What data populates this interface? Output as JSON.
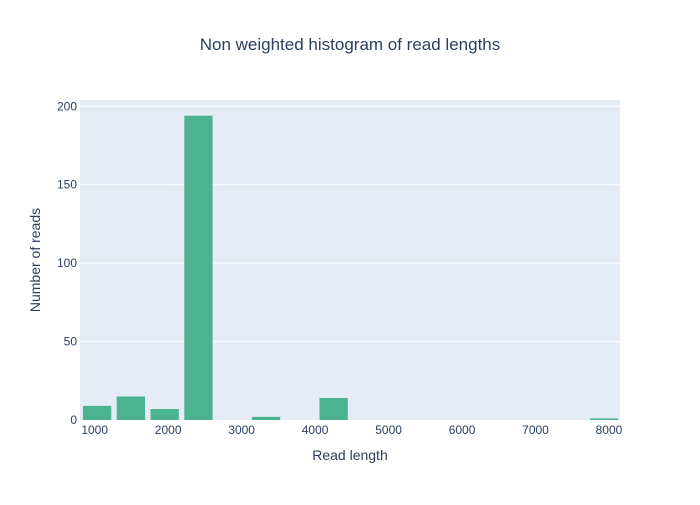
{
  "colors": {
    "background": "#ffffff",
    "plot_background": "#e5ecf6",
    "grid": "#ffffff",
    "bar": "#4cb391",
    "text": "#2a3f5f"
  },
  "chart_data": {
    "type": "bar",
    "title": "Non weighted histogram of read lengths",
    "xlabel": "Read length",
    "ylabel": "Number of reads",
    "xlim": [
      800,
      8150
    ],
    "ylim": [
      0,
      204
    ],
    "grid": true,
    "x_ticks": [
      1000,
      2000,
      3000,
      4000,
      5000,
      6000,
      7000,
      8000
    ],
    "x_tick_labels": [
      "1000",
      "2000",
      "3000",
      "4000",
      "5000",
      "6000",
      "7000",
      "8000"
    ],
    "y_ticks": [
      0,
      50,
      100,
      150,
      200
    ],
    "y_tick_labels": [
      "0",
      "50",
      "100",
      "150",
      "200"
    ],
    "bins": [
      {
        "x0": 840,
        "x1": 1225,
        "value": 9
      },
      {
        "x0": 1300,
        "x1": 1685,
        "value": 15
      },
      {
        "x0": 1760,
        "x1": 2145,
        "value": 7
      },
      {
        "x0": 2220,
        "x1": 2605,
        "value": 194
      },
      {
        "x0": 3140,
        "x1": 3525,
        "value": 2
      },
      {
        "x0": 4060,
        "x1": 4445,
        "value": 14
      },
      {
        "x0": 7740,
        "x1": 8125,
        "value": 1
      }
    ]
  }
}
